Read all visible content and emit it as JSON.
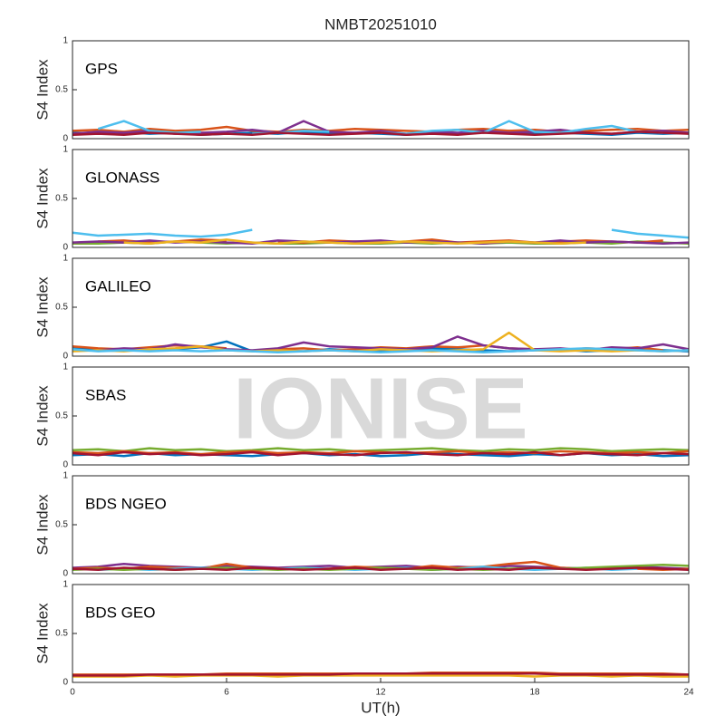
{
  "watermark": "IONISE",
  "chart_data": [
    {
      "type": "line",
      "title": "NMBT20251010",
      "label": "GPS",
      "ylabel": "S4 Index",
      "xlim": [
        0,
        24
      ],
      "ylim": [
        0,
        1
      ],
      "yticks": [
        0,
        0.5,
        1
      ],
      "x": [
        0,
        1,
        2,
        3,
        4,
        5,
        6,
        7,
        8,
        9,
        10,
        11,
        12,
        13,
        14,
        15,
        16,
        17,
        18,
        19,
        20,
        21,
        22,
        23,
        24
      ],
      "series": [
        {
          "color": "#0072BD",
          "values": [
            0.06,
            0.05,
            0.07,
            0.05,
            0.06,
            0.04,
            0.05,
            0.06,
            0.05,
            0.07,
            0.05,
            0.06,
            0.05,
            0.04,
            0.06,
            0.05,
            0.07,
            0.08,
            0.05,
            0.06,
            0.05,
            0.04,
            0.06,
            0.05,
            0.06
          ]
        },
        {
          "color": "#D95319",
          "values": [
            0.08,
            0.09,
            0.07,
            0.1,
            0.08,
            0.09,
            0.12,
            0.08,
            0.07,
            0.09,
            0.08,
            0.1,
            0.09,
            0.08,
            0.07,
            0.09,
            0.1,
            0.08,
            0.09,
            0.07,
            0.08,
            0.09,
            0.1,
            0.08,
            0.09
          ]
        },
        {
          "color": "#7E2F8E",
          "values": [
            0.05,
            0.07,
            0.06,
            0.08,
            0.05,
            0.06,
            0.07,
            0.09,
            0.06,
            0.18,
            0.07,
            0.06,
            0.08,
            0.05,
            0.07,
            0.06,
            0.08,
            0.06,
            0.07,
            0.09,
            0.06,
            0.05,
            0.07,
            0.08,
            0.06
          ]
        },
        {
          "color": "#4DBEEE",
          "values": [
            null,
            0.1,
            0.18,
            0.08,
            0.06,
            0.07,
            null,
            0.05,
            0.06,
            0.08,
            0.07,
            null,
            0.06,
            0.05,
            0.08,
            0.09,
            0.06,
            0.18,
            0.07,
            0.06,
            0.1,
            0.13,
            0.07,
            0.06,
            null
          ]
        },
        {
          "color": "#A2142F",
          "values": [
            0.04,
            0.05,
            0.04,
            0.06,
            0.05,
            0.04,
            0.05,
            0.04,
            0.06,
            0.05,
            0.04,
            0.05,
            0.06,
            0.04,
            0.05,
            0.04,
            0.06,
            0.05,
            0.04,
            0.05,
            0.06,
            0.05,
            0.07,
            0.06,
            0.05
          ]
        }
      ]
    },
    {
      "type": "line",
      "label": "GLONASS",
      "ylabel": "S4 Index",
      "xlim": [
        0,
        24
      ],
      "ylim": [
        0,
        1
      ],
      "yticks": [
        0,
        0.5,
        1
      ],
      "x": [
        0,
        1,
        2,
        3,
        4,
        5,
        6,
        7,
        8,
        9,
        10,
        11,
        12,
        13,
        14,
        15,
        16,
        17,
        18,
        19,
        20,
        21,
        22,
        23,
        24
      ],
      "series": [
        {
          "color": "#4DBEEE",
          "values": [
            0.15,
            0.12,
            0.13,
            0.14,
            0.12,
            0.11,
            0.13,
            0.18,
            null,
            null,
            null,
            null,
            null,
            null,
            null,
            null,
            null,
            null,
            null,
            null,
            null,
            0.18,
            0.14,
            0.12,
            0.1
          ]
        },
        {
          "color": "#77AC30",
          "values": [
            0.04,
            0.04,
            0.05,
            0.04,
            0.06,
            0.05,
            0.04,
            0.05,
            0.04,
            0.04,
            0.05,
            0.04,
            0.04,
            0.05,
            0.04,
            0.05,
            0.04,
            0.05,
            0.04,
            0.04,
            0.05,
            0.04,
            0.06,
            0.05,
            0.04
          ]
        },
        {
          "color": "#D95319",
          "values": [
            null,
            0.06,
            0.07,
            0.05,
            0.06,
            0.08,
            0.07,
            null,
            0.06,
            0.05,
            0.07,
            0.06,
            0.05,
            0.06,
            0.08,
            0.05,
            0.06,
            0.07,
            0.05,
            0.06,
            0.07,
            0.06,
            0.05,
            0.07,
            null
          ]
        },
        {
          "color": "#7E2F8E",
          "values": [
            0.05,
            0.06,
            0.05,
            0.07,
            0.05,
            0.06,
            0.05,
            0.04,
            0.07,
            0.06,
            0.05,
            0.06,
            0.07,
            0.05,
            0.06,
            0.05,
            0.04,
            0.06,
            0.05,
            0.07,
            0.05,
            0.06,
            0.05,
            0.04,
            0.05
          ]
        },
        {
          "color": "#EDB120",
          "values": [
            null,
            null,
            0.05,
            0.04,
            0.06,
            0.05,
            0.08,
            0.05,
            0.04,
            0.06,
            0.05,
            0.04,
            0.05,
            0.06,
            0.05,
            0.04,
            0.05,
            0.06,
            0.05,
            0.04,
            0.05,
            null,
            null,
            null,
            null
          ]
        }
      ]
    },
    {
      "type": "line",
      "label": "GALILEO",
      "ylabel": "S4 Index",
      "xlim": [
        0,
        24
      ],
      "ylim": [
        0,
        1
      ],
      "yticks": [
        0,
        0.5,
        1
      ],
      "x": [
        0,
        1,
        2,
        3,
        4,
        5,
        6,
        7,
        8,
        9,
        10,
        11,
        12,
        13,
        14,
        15,
        16,
        17,
        18,
        19,
        20,
        21,
        22,
        23,
        24
      ],
      "series": [
        {
          "color": "#0072BD",
          "values": [
            0.08,
            0.07,
            0.06,
            0.08,
            0.07,
            0.09,
            0.15,
            0.05,
            0.06,
            0.05,
            0.07,
            0.06,
            0.05,
            0.06,
            0.08,
            0.07,
            0.06,
            0.05,
            0.06,
            0.07,
            0.05,
            0.06,
            0.07,
            0.06,
            0.05
          ]
        },
        {
          "color": "#D95319",
          "values": [
            0.1,
            0.08,
            0.07,
            0.09,
            0.11,
            0.1,
            0.08,
            null,
            0.07,
            0.08,
            0.06,
            0.07,
            0.09,
            0.08,
            0.1,
            0.09,
            0.11,
            0.08,
            0.07,
            0.06,
            0.08,
            0.07,
            0.09,
            0.06,
            null
          ]
        },
        {
          "color": "#7E2F8E",
          "values": [
            null,
            0.06,
            0.08,
            0.07,
            0.12,
            0.09,
            0.07,
            0.06,
            0.08,
            0.14,
            0.1,
            0.09,
            0.08,
            0.07,
            0.09,
            0.2,
            0.11,
            0.08,
            0.07,
            0.08,
            0.06,
            0.09,
            0.08,
            0.12,
            0.07
          ]
        },
        {
          "color": "#EDB120",
          "values": [
            0.05,
            0.06,
            0.05,
            0.07,
            0.08,
            0.1,
            0.06,
            0.05,
            0.06,
            0.05,
            0.06,
            0.05,
            0.07,
            0.06,
            0.05,
            0.06,
            0.07,
            0.24,
            0.06,
            0.05,
            0.06,
            0.05,
            0.06,
            0.05,
            0.06
          ]
        },
        {
          "color": "#4DBEEE",
          "values": [
            0.07,
            0.05,
            0.06,
            0.05,
            0.06,
            0.05,
            0.06,
            0.05,
            0.04,
            0.05,
            0.06,
            0.05,
            0.04,
            0.05,
            0.06,
            0.05,
            0.04,
            0.05,
            0.06,
            0.07,
            0.08,
            0.07,
            0.06,
            0.05,
            0.06
          ]
        }
      ]
    },
    {
      "type": "line",
      "label": "SBAS",
      "ylabel": "S4 Index",
      "xlim": [
        0,
        24
      ],
      "ylim": [
        0,
        1
      ],
      "yticks": [
        0,
        0.5,
        1
      ],
      "x": [
        0,
        1,
        2,
        3,
        4,
        5,
        6,
        7,
        8,
        9,
        10,
        11,
        12,
        13,
        14,
        15,
        16,
        17,
        18,
        19,
        20,
        21,
        22,
        23,
        24
      ],
      "series": [
        {
          "color": "#77AC30",
          "values": [
            0.15,
            0.16,
            0.14,
            0.17,
            0.15,
            0.16,
            0.14,
            0.15,
            0.17,
            0.15,
            0.16,
            0.14,
            0.15,
            0.16,
            0.17,
            0.15,
            0.14,
            0.16,
            0.15,
            0.17,
            0.16,
            0.14,
            0.15,
            0.16,
            0.15
          ]
        },
        {
          "color": "#0072BD",
          "values": [
            0.1,
            0.11,
            0.09,
            0.12,
            0.1,
            0.11,
            0.1,
            0.09,
            0.11,
            0.12,
            0.1,
            0.11,
            0.09,
            0.1,
            0.12,
            0.11,
            0.1,
            0.09,
            0.11,
            0.1,
            0.12,
            0.1,
            0.11,
            0.09,
            0.1
          ]
        },
        {
          "color": "#D95319",
          "values": [
            0.13,
            0.12,
            0.14,
            0.12,
            0.13,
            0.11,
            0.13,
            0.14,
            0.12,
            0.13,
            0.12,
            0.14,
            0.13,
            0.12,
            0.13,
            0.14,
            0.12,
            0.13,
            0.12,
            0.14,
            0.13,
            0.12,
            0.13,
            0.12,
            0.14
          ]
        },
        {
          "color": "#A2142F",
          "values": [
            0.12,
            0.1,
            0.13,
            0.11,
            0.12,
            0.1,
            0.11,
            0.13,
            0.1,
            0.12,
            0.11,
            0.1,
            0.12,
            0.13,
            0.11,
            0.1,
            0.12,
            0.11,
            0.13,
            0.1,
            0.12,
            0.11,
            0.1,
            0.12,
            0.11
          ]
        }
      ]
    },
    {
      "type": "line",
      "label": "BDS NGEO",
      "ylabel": "S4 Index",
      "xlim": [
        0,
        24
      ],
      "ylim": [
        0,
        1
      ],
      "yticks": [
        0,
        0.5,
        1
      ],
      "x": [
        0,
        1,
        2,
        3,
        4,
        5,
        6,
        7,
        8,
        9,
        10,
        11,
        12,
        13,
        14,
        15,
        16,
        17,
        18,
        19,
        20,
        21,
        22,
        23,
        24
      ],
      "series": [
        {
          "color": "#7E2F8E",
          "values": [
            0.06,
            0.07,
            0.1,
            0.08,
            0.07,
            0.06,
            0.08,
            0.07,
            0.06,
            0.07,
            0.08,
            0.06,
            0.07,
            0.08,
            0.06,
            0.07,
            0.06,
            0.08,
            0.07,
            0.06,
            0.05,
            0.06,
            0.07,
            0.06,
            0.05
          ]
        },
        {
          "color": "#D95319",
          "values": [
            0.05,
            0.06,
            0.05,
            0.07,
            0.06,
            0.05,
            0.1,
            0.06,
            0.05,
            0.06,
            0.05,
            0.07,
            0.06,
            0.05,
            0.08,
            0.06,
            0.07,
            0.1,
            0.12,
            0.06,
            0.05,
            0.06,
            0.05,
            0.04,
            0.05
          ]
        },
        {
          "color": "#4DBEEE",
          "values": [
            null,
            0.04,
            0.05,
            0.04,
            0.05,
            0.06,
            0.05,
            0.04,
            0.05,
            0.06,
            0.05,
            0.04,
            0.05,
            0.06,
            0.04,
            0.05,
            0.07,
            0.05,
            0.04,
            0.05,
            0.06,
            0.04,
            0.05,
            null,
            null
          ]
        },
        {
          "color": "#77AC30",
          "values": [
            0.04,
            0.05,
            0.04,
            0.05,
            0.04,
            0.05,
            0.06,
            0.05,
            0.04,
            0.05,
            0.04,
            0.05,
            0.06,
            0.05,
            0.04,
            0.05,
            0.04,
            0.05,
            0.06,
            0.05,
            0.06,
            0.07,
            0.08,
            0.09,
            0.08
          ]
        },
        {
          "color": "#A2142F",
          "values": [
            0.05,
            0.04,
            0.06,
            0.05,
            0.04,
            0.05,
            0.04,
            0.06,
            0.05,
            0.04,
            0.05,
            0.06,
            0.04,
            0.05,
            0.06,
            0.04,
            0.05,
            0.04,
            0.06,
            0.05,
            0.04,
            0.05,
            0.06,
            0.05,
            0.04
          ]
        }
      ]
    },
    {
      "type": "line",
      "label": "BDS GEO",
      "ylabel": "S4 Index",
      "xlabel": "UT(h)",
      "xlim": [
        0,
        24
      ],
      "ylim": [
        0,
        1
      ],
      "yticks": [
        0,
        0.5,
        1
      ],
      "xticks": [
        0,
        6,
        12,
        18,
        24
      ],
      "x": [
        0,
        1,
        2,
        3,
        4,
        5,
        6,
        7,
        8,
        9,
        10,
        11,
        12,
        13,
        14,
        15,
        16,
        17,
        18,
        19,
        20,
        21,
        22,
        23,
        24
      ],
      "series": [
        {
          "color": "#EDB120",
          "values": [
            0.06,
            0.06,
            0.06,
            0.07,
            0.06,
            0.07,
            0.07,
            0.07,
            0.06,
            0.07,
            0.07,
            0.07,
            0.07,
            0.07,
            0.07,
            0.07,
            0.07,
            0.07,
            0.06,
            0.07,
            0.07,
            0.06,
            0.07,
            0.06,
            0.06
          ]
        },
        {
          "color": "#D95319",
          "values": [
            0.08,
            0.08,
            0.08,
            0.08,
            0.08,
            0.08,
            0.09,
            0.09,
            0.09,
            0.09,
            0.09,
            0.09,
            0.09,
            0.09,
            0.1,
            0.1,
            0.1,
            0.1,
            0.1,
            0.09,
            0.09,
            0.09,
            0.09,
            0.09,
            0.08
          ]
        },
        {
          "color": "#A2142F",
          "values": [
            0.07,
            0.07,
            0.07,
            0.08,
            0.08,
            0.08,
            0.08,
            0.08,
            0.08,
            0.08,
            0.08,
            0.09,
            0.09,
            0.09,
            0.09,
            0.09,
            0.09,
            0.09,
            0.09,
            0.08,
            0.08,
            0.08,
            0.08,
            0.08,
            0.08
          ]
        }
      ]
    }
  ]
}
